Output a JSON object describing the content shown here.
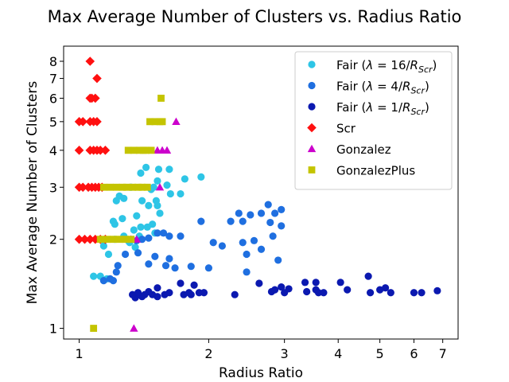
{
  "chart_data": {
    "type": "scatter",
    "title": "Max Average Number of Clusters vs. Radius Ratio",
    "xlabel": "Radius Ratio",
    "ylabel": "Max Average Number of Clusters",
    "xscale": "log",
    "yscale": "log",
    "xlim": [
      0.92,
      7.6
    ],
    "ylim": [
      0.92,
      9.0
    ],
    "xticks": [
      1,
      2,
      3,
      4,
      5,
      6,
      7
    ],
    "xtick_labels": [
      "1",
      "2",
      "3",
      "4",
      "5",
      "6",
      "7"
    ],
    "yticks": [
      1,
      2,
      3,
      4,
      5,
      6,
      7,
      8
    ],
    "ytick_labels": [
      "1",
      "2",
      "3",
      "4",
      "5",
      "6",
      "7",
      "8"
    ],
    "grid": false,
    "legend_position": "top-right",
    "series": [
      {
        "name": "Fair (λ = 16/R_Scr)",
        "color": "#2ec5e6",
        "marker": "circle",
        "points": [
          [
            1.43,
            3.5
          ],
          [
            1.62,
            3.45
          ],
          [
            1.53,
            3.45
          ],
          [
            1.39,
            3.35
          ],
          [
            1.76,
            3.2
          ],
          [
            1.92,
            3.25
          ],
          [
            1.52,
            3.15
          ],
          [
            1.6,
            3.05
          ],
          [
            1.32,
            3.0
          ],
          [
            1.49,
            3.0
          ],
          [
            1.47,
            2.95
          ],
          [
            1.72,
            2.85
          ],
          [
            1.63,
            2.85
          ],
          [
            1.24,
            2.8
          ],
          [
            1.27,
            2.75
          ],
          [
            1.22,
            2.7
          ],
          [
            1.4,
            2.7
          ],
          [
            1.51,
            2.7
          ],
          [
            1.52,
            2.6
          ],
          [
            1.45,
            2.6
          ],
          [
            1.54,
            2.45
          ],
          [
            1.36,
            2.4
          ],
          [
            1.26,
            2.35
          ],
          [
            1.2,
            2.3
          ],
          [
            1.21,
            2.25
          ],
          [
            1.48,
            2.25
          ],
          [
            1.39,
            2.2
          ],
          [
            1.44,
            2.2
          ],
          [
            1.34,
            2.15
          ],
          [
            1.5,
            2.1
          ],
          [
            1.27,
            2.05
          ],
          [
            1.38,
            2.05
          ],
          [
            1.15,
            2.0
          ],
          [
            1.21,
            2.0
          ],
          [
            1.3,
            1.98
          ],
          [
            1.14,
            1.9
          ],
          [
            1.08,
            1.5
          ],
          [
            1.12,
            1.5
          ],
          [
            1.16,
            1.47
          ],
          [
            1.17,
            1.78
          ],
          [
            1.31,
            1.95
          ],
          [
            1.35,
            1.88
          ]
        ]
      },
      {
        "name": "Fair (λ = 4/R_Scr)",
        "color": "#1f6fe0",
        "marker": "circle",
        "points": [
          [
            2.75,
            2.62
          ],
          [
            2.95,
            2.52
          ],
          [
            2.35,
            2.45
          ],
          [
            2.65,
            2.45
          ],
          [
            2.85,
            2.45
          ],
          [
            2.5,
            2.42
          ],
          [
            2.4,
            2.3
          ],
          [
            2.25,
            2.3
          ],
          [
            2.78,
            2.28
          ],
          [
            2.95,
            2.22
          ],
          [
            1.92,
            2.3
          ],
          [
            1.52,
            2.1
          ],
          [
            1.62,
            2.05
          ],
          [
            1.72,
            2.05
          ],
          [
            1.57,
            2.1
          ],
          [
            1.45,
            2.02
          ],
          [
            1.4,
            2.0
          ],
          [
            1.36,
            1.98
          ],
          [
            2.05,
            1.95
          ],
          [
            2.15,
            1.9
          ],
          [
            2.4,
            1.95
          ],
          [
            2.55,
            1.98
          ],
          [
            2.82,
            2.05
          ],
          [
            2.65,
            1.85
          ],
          [
            1.37,
            1.8
          ],
          [
            1.28,
            1.78
          ],
          [
            1.5,
            1.75
          ],
          [
            1.62,
            1.72
          ],
          [
            2.45,
            1.78
          ],
          [
            1.45,
            1.65
          ],
          [
            1.59,
            1.63
          ],
          [
            2.9,
            1.7
          ],
          [
            1.82,
            1.62
          ],
          [
            1.67,
            1.6
          ],
          [
            2.0,
            1.6
          ],
          [
            1.23,
            1.63
          ],
          [
            1.22,
            1.55
          ],
          [
            2.45,
            1.55
          ],
          [
            1.14,
            1.45
          ],
          [
            1.2,
            1.45
          ],
          [
            1.18,
            1.47
          ]
        ]
      },
      {
        "name": "Fair (λ = 1/R_Scr)",
        "color": "#0b19b0",
        "marker": "circle",
        "points": [
          [
            4.7,
            1.5
          ],
          [
            3.55,
            1.43
          ],
          [
            4.05,
            1.43
          ],
          [
            3.35,
            1.43
          ],
          [
            2.62,
            1.42
          ],
          [
            2.95,
            1.38
          ],
          [
            1.72,
            1.42
          ],
          [
            1.85,
            1.4
          ],
          [
            4.2,
            1.35
          ],
          [
            5.15,
            1.37
          ],
          [
            5.0,
            1.35
          ],
          [
            5.3,
            1.32
          ],
          [
            6.0,
            1.32
          ],
          [
            6.25,
            1.32
          ],
          [
            6.8,
            1.34
          ],
          [
            4.75,
            1.32
          ],
          [
            3.55,
            1.35
          ],
          [
            3.6,
            1.32
          ],
          [
            3.38,
            1.33
          ],
          [
            3.7,
            1.32
          ],
          [
            3.0,
            1.32
          ],
          [
            2.8,
            1.33
          ],
          [
            2.3,
            1.3
          ],
          [
            1.95,
            1.32
          ],
          [
            1.8,
            1.32
          ],
          [
            1.82,
            1.3
          ],
          [
            1.75,
            1.3
          ],
          [
            1.62,
            1.32
          ],
          [
            1.58,
            1.3
          ],
          [
            1.48,
            1.3
          ],
          [
            1.52,
            1.28
          ],
          [
            1.45,
            1.33
          ],
          [
            1.4,
            1.28
          ],
          [
            1.35,
            1.27
          ],
          [
            1.37,
            1.32
          ],
          [
            1.42,
            1.3
          ],
          [
            1.33,
            1.3
          ],
          [
            1.52,
            1.37
          ],
          [
            1.9,
            1.32
          ],
          [
            2.85,
            1.35
          ],
          [
            3.07,
            1.36
          ]
        ]
      },
      {
        "name": "Scr",
        "color": "#ff1010",
        "marker": "diamond",
        "points": [
          [
            1.06,
            8.0
          ],
          [
            1.1,
            7.0
          ],
          [
            1.06,
            6.0
          ],
          [
            1.09,
            6.0
          ],
          [
            1.07,
            6.0
          ],
          [
            1.0,
            5.0
          ],
          [
            1.02,
            5.0
          ],
          [
            1.06,
            5.0
          ],
          [
            1.08,
            5.0
          ],
          [
            1.1,
            5.0
          ],
          [
            1.0,
            4.0
          ],
          [
            1.06,
            4.0
          ],
          [
            1.08,
            4.0
          ],
          [
            1.1,
            4.0
          ],
          [
            1.12,
            4.0
          ],
          [
            1.15,
            4.0
          ],
          [
            1.0,
            3.0
          ],
          [
            1.02,
            3.0
          ],
          [
            1.05,
            3.0
          ],
          [
            1.07,
            3.0
          ],
          [
            1.09,
            3.0
          ],
          [
            1.11,
            3.0
          ],
          [
            1.13,
            3.0
          ],
          [
            1.0,
            2.0
          ],
          [
            1.03,
            2.0
          ],
          [
            1.06,
            2.0
          ],
          [
            1.09,
            2.0
          ],
          [
            1.12,
            2.0
          ],
          [
            1.15,
            2.0
          ]
        ]
      },
      {
        "name": "Gonzalez",
        "color": "#cc00cc",
        "marker": "triangle",
        "points": [
          [
            1.68,
            5.0
          ],
          [
            1.52,
            4.0
          ],
          [
            1.56,
            4.0
          ],
          [
            1.6,
            4.0
          ],
          [
            1.54,
            3.0
          ],
          [
            1.32,
            2.0
          ],
          [
            1.36,
            2.0
          ],
          [
            1.34,
            1.0
          ]
        ]
      },
      {
        "name": "GonzalezPlus",
        "color": "#c4c400",
        "marker": "square",
        "points": [
          [
            1.55,
            6.0
          ],
          [
            1.46,
            5.0
          ],
          [
            1.5,
            5.0
          ],
          [
            1.54,
            5.0
          ],
          [
            1.56,
            5.0
          ],
          [
            1.3,
            4.0
          ],
          [
            1.34,
            4.0
          ],
          [
            1.38,
            4.0
          ],
          [
            1.41,
            4.0
          ],
          [
            1.43,
            4.0
          ],
          [
            1.47,
            4.0
          ],
          [
            1.14,
            3.0
          ],
          [
            1.18,
            3.0
          ],
          [
            1.22,
            3.0
          ],
          [
            1.26,
            3.0
          ],
          [
            1.29,
            3.0
          ],
          [
            1.33,
            3.0
          ],
          [
            1.37,
            3.0
          ],
          [
            1.4,
            3.0
          ],
          [
            1.44,
            3.0
          ],
          [
            1.12,
            2.0
          ],
          [
            1.16,
            2.0
          ],
          [
            1.2,
            2.0
          ],
          [
            1.24,
            2.0
          ],
          [
            1.28,
            2.0
          ],
          [
            1.32,
            2.0
          ],
          [
            1.08,
            1.0
          ]
        ]
      }
    ],
    "legend": [
      {
        "label_prefix": "Fair (",
        "lambda": "λ",
        "label_mid": " = 16/",
        "R": "R",
        "sub": "Scr",
        "label_suffix": ")"
      },
      {
        "label_prefix": "Fair (",
        "lambda": "λ",
        "label_mid": " = 4/",
        "R": "R",
        "sub": "Scr",
        "label_suffix": ")"
      },
      {
        "label_prefix": "Fair (",
        "lambda": "λ",
        "label_mid": " = 1/",
        "R": "R",
        "sub": "Scr",
        "label_suffix": ")"
      },
      {
        "label": "Scr"
      },
      {
        "label": "Gonzalez"
      },
      {
        "label": "GonzalezPlus"
      }
    ]
  }
}
